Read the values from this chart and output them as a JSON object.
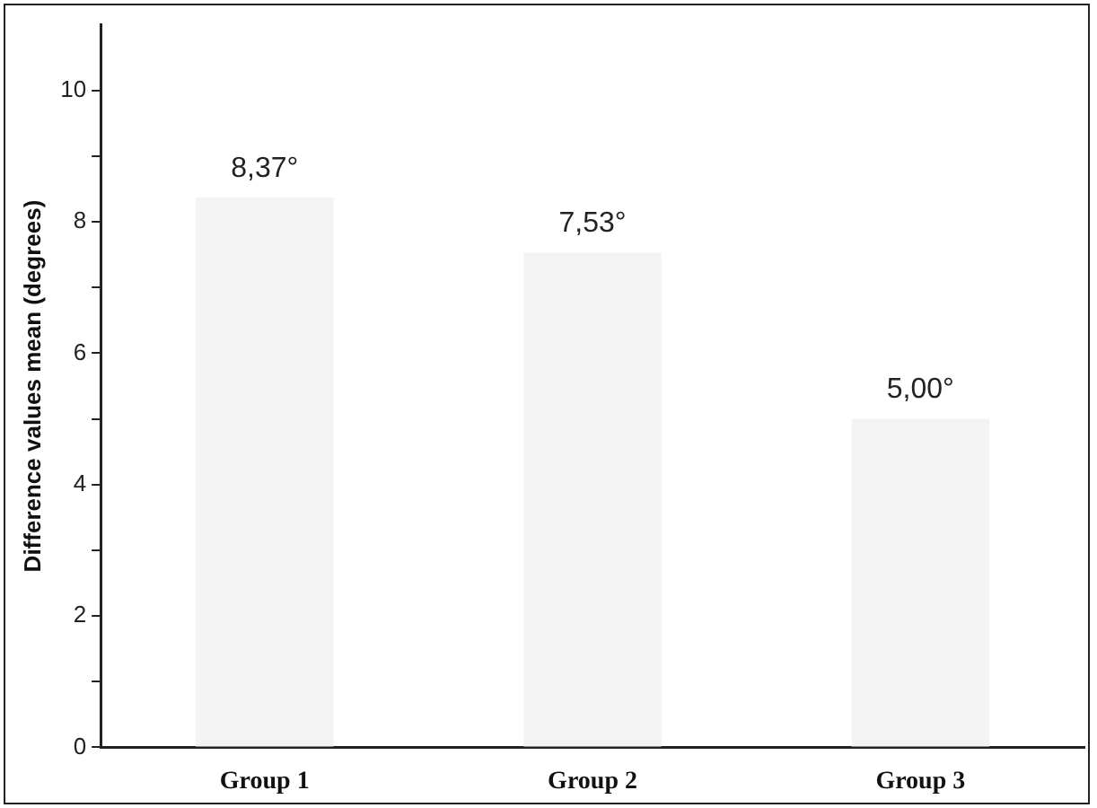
{
  "chart_data": {
    "type": "bar",
    "ylabel": "Difference values mean (degrees)",
    "categories": [
      "Group 1",
      "Group 2",
      "Group 3"
    ],
    "values": [
      8.37,
      7.53,
      5.0
    ],
    "value_labels": [
      "8,37°",
      "7,53°",
      "5,00°"
    ],
    "color": "#f3f3f3",
    "ylim": [
      0,
      11
    ],
    "yticks": [
      0,
      {
        "value": 1,
        "label": null
      },
      2,
      {
        "value": 3,
        "label": null
      },
      4,
      {
        "value": 5,
        "label": null
      },
      6,
      {
        "value": 7,
        "label": null
      },
      8,
      {
        "value": 9,
        "label": null
      },
      10
    ],
    "grid": false,
    "legend": false
  }
}
